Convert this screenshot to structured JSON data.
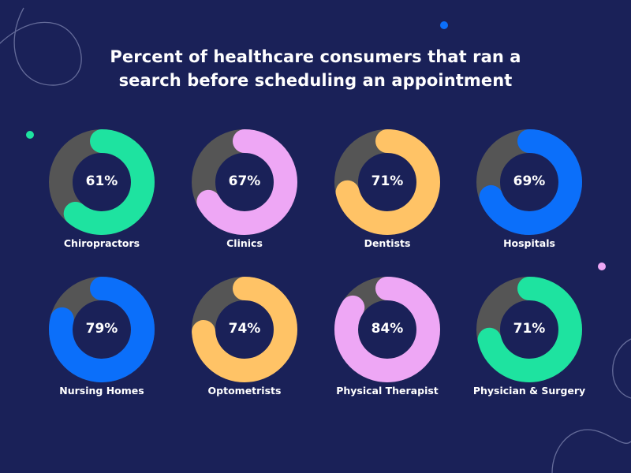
{
  "chart_data": {
    "type": "pie",
    "title": [
      "Percent of healthcare consumers that ran a",
      "search before scheduling an appointment"
    ],
    "track_color": "#555555",
    "categories": [
      "Chiropractors",
      "Clinics",
      "Dentists",
      "Hospitals",
      "Nursing Homes",
      "Optometrists",
      "Physical Therapist",
      "Physician & Surgery"
    ],
    "values": [
      61,
      67,
      71,
      69,
      79,
      74,
      84,
      71
    ],
    "display": [
      "61%",
      "67%",
      "71%",
      "69%",
      "79%",
      "74%",
      "84%",
      "71%"
    ],
    "colors": [
      "#1ee3a0",
      "#eea7f5",
      "#ffc366",
      "#0b6ffa",
      "#0b6ffa",
      "#ffc366",
      "#eea7f5",
      "#1ee3a0"
    ],
    "unit": "%",
    "max": 100
  },
  "decor": {
    "accent_dots": [
      "#0b6ffa",
      "#1ee3a0",
      "#eea7f5"
    ]
  }
}
